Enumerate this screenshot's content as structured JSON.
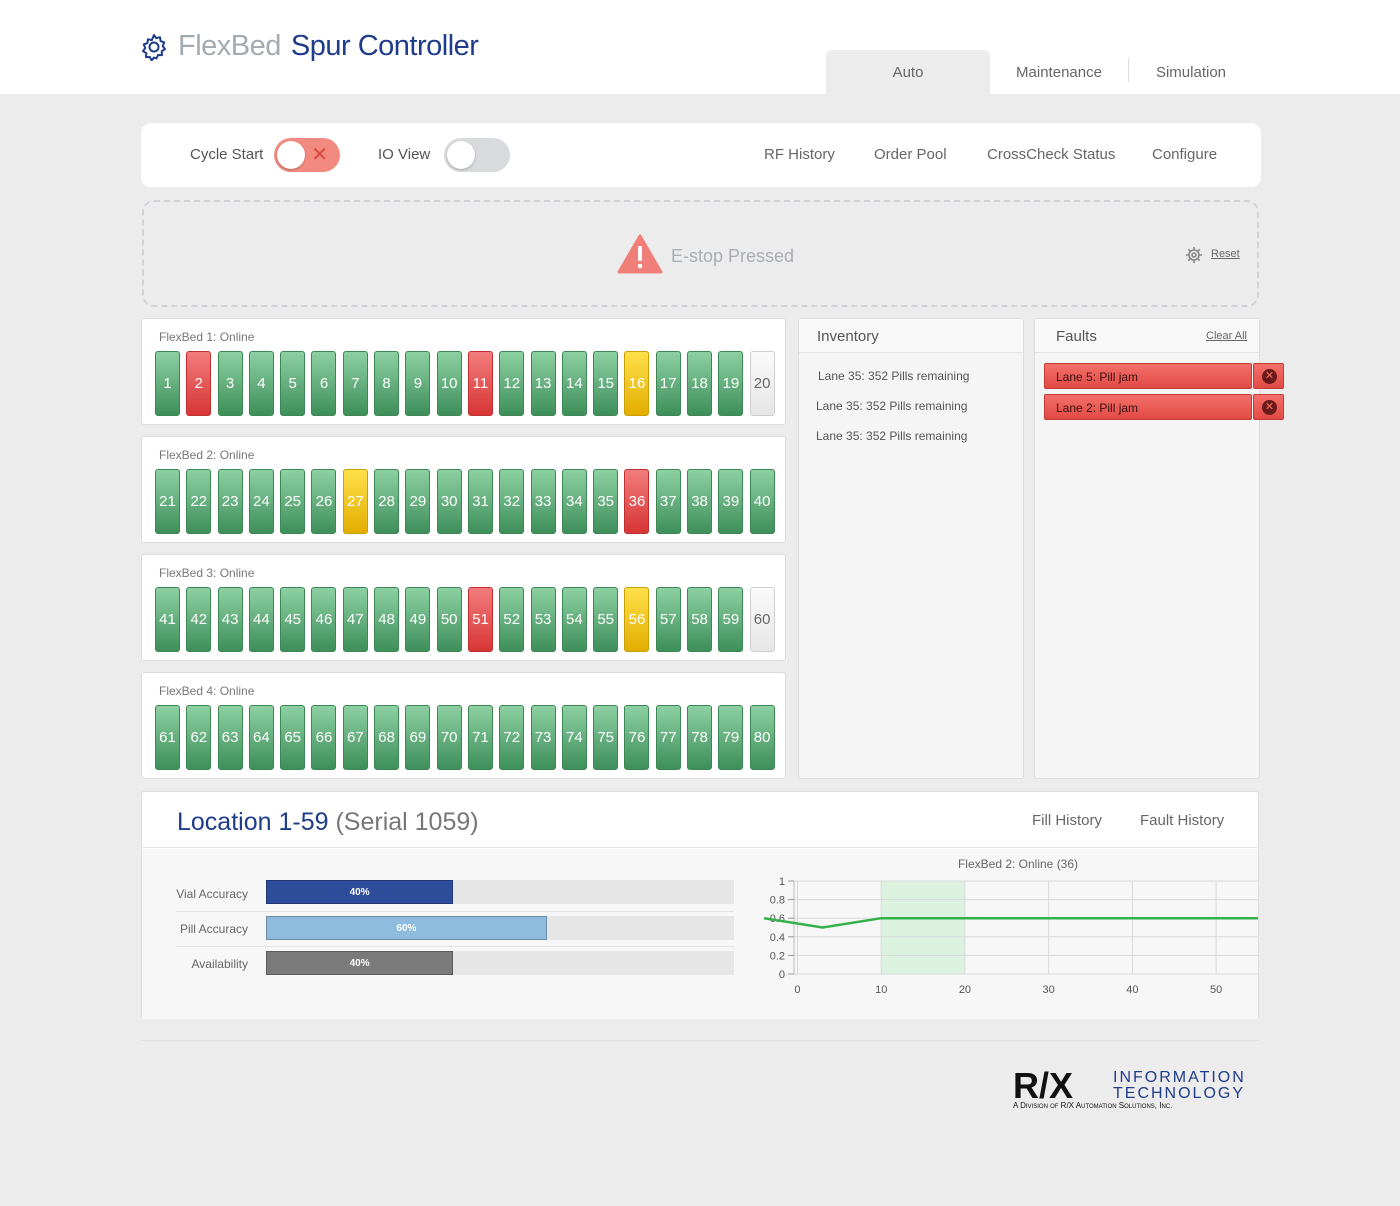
{
  "brand": {
    "light": "FlexBed",
    "dark": "Spur Controller",
    "icon": "gear-icon"
  },
  "tabs": [
    {
      "label": "Auto",
      "active": true
    },
    {
      "label": "Maintenance",
      "active": false
    },
    {
      "label": "Simulation",
      "active": false
    }
  ],
  "controls": {
    "cycle_start_label": "Cycle Start",
    "cycle_start_on": true,
    "io_view_label": "IO View",
    "io_view_on": false,
    "links": [
      "RF History",
      "Order Pool",
      "CrossCheck Status",
      "Configure"
    ]
  },
  "estop": {
    "text": "E-stop Pressed",
    "reset_label": "Reset",
    "icon": "warning-icon"
  },
  "colors": {
    "green": "#4f9e69",
    "red": "#e24a44",
    "yellow": "#f3c800",
    "empty": "#eeeeee",
    "brand": "#1f3c8a"
  },
  "beds": [
    {
      "title": "FlexBed 1: Online",
      "lanes": [
        {
          "n": "1",
          "s": "green"
        },
        {
          "n": "2",
          "s": "red"
        },
        {
          "n": "3",
          "s": "green"
        },
        {
          "n": "4",
          "s": "green"
        },
        {
          "n": "5",
          "s": "green"
        },
        {
          "n": "6",
          "s": "green"
        },
        {
          "n": "7",
          "s": "green"
        },
        {
          "n": "8",
          "s": "green"
        },
        {
          "n": "9",
          "s": "green"
        },
        {
          "n": "10",
          "s": "green"
        },
        {
          "n": "11",
          "s": "red"
        },
        {
          "n": "12",
          "s": "green"
        },
        {
          "n": "13",
          "s": "green"
        },
        {
          "n": "14",
          "s": "green"
        },
        {
          "n": "15",
          "s": "green"
        },
        {
          "n": "16",
          "s": "yellow"
        },
        {
          "n": "17",
          "s": "green"
        },
        {
          "n": "18",
          "s": "green"
        },
        {
          "n": "19",
          "s": "green"
        },
        {
          "n": "20",
          "s": "empty"
        }
      ]
    },
    {
      "title": "FlexBed 2: Online",
      "lanes": [
        {
          "n": "21",
          "s": "green"
        },
        {
          "n": "22",
          "s": "green"
        },
        {
          "n": "23",
          "s": "green"
        },
        {
          "n": "24",
          "s": "green"
        },
        {
          "n": "25",
          "s": "green"
        },
        {
          "n": "26",
          "s": "green"
        },
        {
          "n": "27",
          "s": "yellow"
        },
        {
          "n": "28",
          "s": "green"
        },
        {
          "n": "29",
          "s": "green"
        },
        {
          "n": "30",
          "s": "green"
        },
        {
          "n": "31",
          "s": "green"
        },
        {
          "n": "32",
          "s": "green"
        },
        {
          "n": "33",
          "s": "green"
        },
        {
          "n": "34",
          "s": "green"
        },
        {
          "n": "35",
          "s": "green"
        },
        {
          "n": "36",
          "s": "red"
        },
        {
          "n": "37",
          "s": "green"
        },
        {
          "n": "38",
          "s": "green"
        },
        {
          "n": "39",
          "s": "green"
        },
        {
          "n": "40",
          "s": "green"
        }
      ]
    },
    {
      "title": "FlexBed 3: Online",
      "lanes": [
        {
          "n": "41",
          "s": "green"
        },
        {
          "n": "42",
          "s": "green"
        },
        {
          "n": "43",
          "s": "green"
        },
        {
          "n": "44",
          "s": "green"
        },
        {
          "n": "45",
          "s": "green"
        },
        {
          "n": "46",
          "s": "green"
        },
        {
          "n": "47",
          "s": "green"
        },
        {
          "n": "48",
          "s": "green"
        },
        {
          "n": "49",
          "s": "green"
        },
        {
          "n": "50",
          "s": "green"
        },
        {
          "n": "51",
          "s": "red"
        },
        {
          "n": "52",
          "s": "green"
        },
        {
          "n": "53",
          "s": "green"
        },
        {
          "n": "54",
          "s": "green"
        },
        {
          "n": "55",
          "s": "green"
        },
        {
          "n": "56",
          "s": "yellow"
        },
        {
          "n": "57",
          "s": "green"
        },
        {
          "n": "58",
          "s": "green"
        },
        {
          "n": "59",
          "s": "green"
        },
        {
          "n": "60",
          "s": "empty"
        }
      ]
    },
    {
      "title": "FlexBed 4: Online",
      "lanes": [
        {
          "n": "61",
          "s": "green"
        },
        {
          "n": "62",
          "s": "green"
        },
        {
          "n": "63",
          "s": "green"
        },
        {
          "n": "64",
          "s": "green"
        },
        {
          "n": "65",
          "s": "green"
        },
        {
          "n": "66",
          "s": "green"
        },
        {
          "n": "67",
          "s": "green"
        },
        {
          "n": "68",
          "s": "green"
        },
        {
          "n": "69",
          "s": "green"
        },
        {
          "n": "70",
          "s": "green"
        },
        {
          "n": "71",
          "s": "green"
        },
        {
          "n": "72",
          "s": "green"
        },
        {
          "n": "73",
          "s": "green"
        },
        {
          "n": "74",
          "s": "green"
        },
        {
          "n": "75",
          "s": "green"
        },
        {
          "n": "76",
          "s": "green"
        },
        {
          "n": "77",
          "s": "green"
        },
        {
          "n": "78",
          "s": "green"
        },
        {
          "n": "79",
          "s": "green"
        },
        {
          "n": "80",
          "s": "green"
        }
      ]
    }
  ],
  "inventory": {
    "title": "Inventory",
    "items": [
      "Lane 35: 352 Pills remaining",
      "Lane 35: 352 Pills remaining",
      "Lane 35: 352 Pills remaining"
    ]
  },
  "faults": {
    "title": "Faults",
    "clear_all": "Clear All",
    "items": [
      "Lane 5: Pill jam",
      "Lane 2: Pill jam"
    ]
  },
  "location": {
    "title": "Location 1-59",
    "serial": "(Serial 1059)",
    "links": [
      "Fill History",
      "Fault History"
    ],
    "metrics": [
      {
        "label": "Vial Accuracy",
        "value": 0.4,
        "text": "40%",
        "color": "#2d4c9a"
      },
      {
        "label": "Pill Accuracy",
        "value": 0.6,
        "text": "60%",
        "color": "#8dbcde"
      },
      {
        "label": "Availability",
        "value": 0.4,
        "text": "40%",
        "color": "#7a7a7a"
      }
    ]
  },
  "chart_data": {
    "type": "line",
    "title": "FlexBed 2: Online (36)",
    "xlabel": "",
    "ylabel": "",
    "xlim": [
      -4,
      55
    ],
    "ylim": [
      0,
      1
    ],
    "xticks": [
      "0",
      "10",
      "20",
      "30",
      "40",
      "50"
    ],
    "yticks": [
      "0",
      "0.2",
      "0.4",
      "0.6",
      "0.8",
      "1"
    ],
    "grid": true,
    "highlight_range": [
      10,
      20
    ],
    "series": [
      {
        "color": "#35b04a",
        "x": [
          -4,
          3,
          10,
          55
        ],
        "y": [
          0.6,
          0.5,
          0.6,
          0.6
        ]
      }
    ]
  },
  "footer": {
    "logo_main": "R/X",
    "logo_line1": "INFORMATION",
    "logo_line2": "TECHNOLOGY",
    "logo_sub": "A Division of R/X Automation Solutions, Inc."
  }
}
